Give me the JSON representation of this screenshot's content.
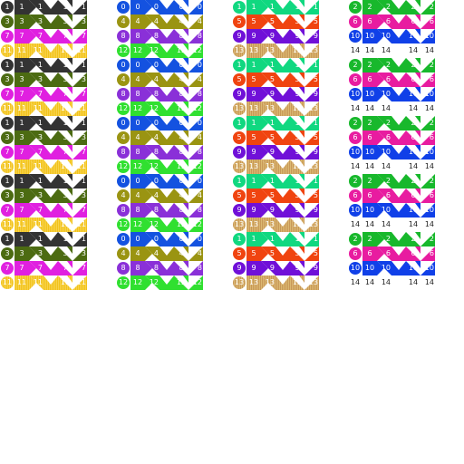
{
  "sheet": {
    "background": "#ffffff",
    "columns": [
      {
        "tiles": [
          {
            "label": "1",
            "color": "#333333",
            "pattern": "solid",
            "ink": "#ffffff"
          },
          {
            "label": "3",
            "color": "#4c6b12",
            "pattern": "solid",
            "ink": "#ffffff"
          },
          {
            "label": "7",
            "color": "#e020e0",
            "pattern": "solid",
            "ink": "#ffffff"
          },
          {
            "label": "11",
            "color": "#f2c21c",
            "pattern": "stripes",
            "ink": "#ffffff"
          }
        ]
      },
      {
        "tiles": [
          {
            "label": "0",
            "color": "#1452e0",
            "pattern": "solid",
            "ink": "#ffffff"
          },
          {
            "label": "4",
            "color": "#9a9412",
            "pattern": "solid",
            "ink": "#ffffff"
          },
          {
            "label": "8",
            "color": "#8a30d8",
            "pattern": "solid",
            "ink": "#ffffff"
          },
          {
            "label": "12",
            "color": "#30e030",
            "pattern": "solid",
            "ink": "#ffffff"
          }
        ]
      },
      {
        "tiles": [
          {
            "label": "1",
            "color": "#10d880",
            "pattern": "solid",
            "ink": "#ffffff"
          },
          {
            "label": "5",
            "color": "#f04410",
            "pattern": "solid",
            "ink": "#ffffff"
          },
          {
            "label": "9",
            "color": "#7010d8",
            "pattern": "solid",
            "ink": "#ffffff"
          },
          {
            "label": "13",
            "color": "#c89858",
            "pattern": "stripes",
            "ink": "#ffffff"
          }
        ]
      },
      {
        "tiles": [
          {
            "label": "2",
            "color": "#18b82c",
            "pattern": "solid",
            "ink": "#ffffff"
          },
          {
            "label": "6",
            "color": "#e81ca0",
            "pattern": "solid",
            "ink": "#ffffff"
          },
          {
            "label": "10",
            "color": "#1040e8",
            "pattern": "solid",
            "ink": "#ffffff"
          },
          {
            "label": "14",
            "color": "#222222",
            "pattern": "none",
            "ink": "#222222"
          }
        ]
      }
    ]
  }
}
